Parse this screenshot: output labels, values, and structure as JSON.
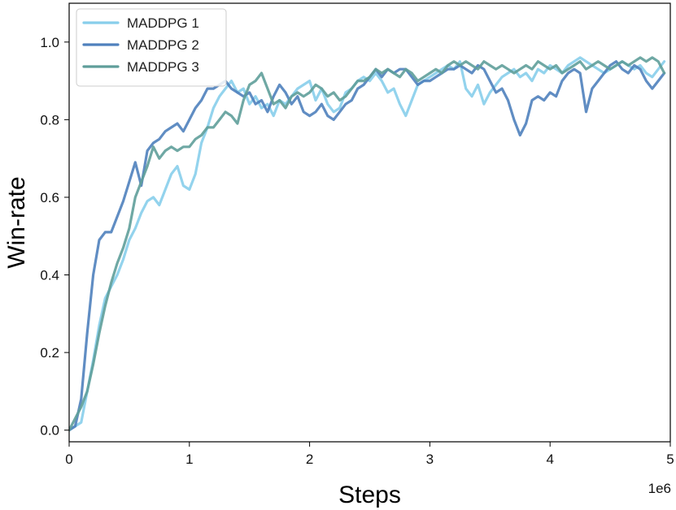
{
  "chart_data": {
    "type": "line",
    "title": "",
    "xlabel": "Steps",
    "ylabel": "Win-rate",
    "x_offset_label": "1e6",
    "xlim": [
      0,
      5
    ],
    "ylim": [
      -0.03,
      1.1
    ],
    "xticks": [
      0,
      1,
      2,
      3,
      4,
      5
    ],
    "xtick_labels": [
      "0",
      "1",
      "2",
      "3",
      "4",
      "5"
    ],
    "yticks": [
      0.0,
      0.2,
      0.4,
      0.6,
      0.8,
      1.0
    ],
    "ytick_labels": [
      "0.0",
      "0.2",
      "0.4",
      "0.6",
      "0.8",
      "1.0"
    ],
    "grid": false,
    "legend_position": "top-left",
    "series": [
      {
        "name": "MADDPG 1",
        "color": "#87CEEB",
        "points": [
          [
            0,
            0
          ],
          [
            0.1,
            0.02
          ],
          [
            0.15,
            0.1
          ],
          [
            0.2,
            0.18
          ],
          [
            0.25,
            0.27
          ],
          [
            0.3,
            0.34
          ],
          [
            0.35,
            0.37
          ],
          [
            0.4,
            0.4
          ],
          [
            0.45,
            0.44
          ],
          [
            0.5,
            0.49
          ],
          [
            0.55,
            0.52
          ],
          [
            0.6,
            0.56
          ],
          [
            0.65,
            0.59
          ],
          [
            0.7,
            0.6
          ],
          [
            0.75,
            0.58
          ],
          [
            0.8,
            0.62
          ],
          [
            0.85,
            0.66
          ],
          [
            0.9,
            0.68
          ],
          [
            0.95,
            0.63
          ],
          [
            1.0,
            0.62
          ],
          [
            1.05,
            0.66
          ],
          [
            1.1,
            0.74
          ],
          [
            1.15,
            0.78
          ],
          [
            1.2,
            0.83
          ],
          [
            1.25,
            0.86
          ],
          [
            1.3,
            0.88
          ],
          [
            1.35,
            0.9
          ],
          [
            1.4,
            0.87
          ],
          [
            1.45,
            0.88
          ],
          [
            1.5,
            0.84
          ],
          [
            1.55,
            0.86
          ],
          [
            1.6,
            0.83
          ],
          [
            1.65,
            0.84
          ],
          [
            1.7,
            0.81
          ],
          [
            1.75,
            0.85
          ],
          [
            1.8,
            0.84
          ],
          [
            1.85,
            0.86
          ],
          [
            1.9,
            0.88
          ],
          [
            1.95,
            0.89
          ],
          [
            2.0,
            0.9
          ],
          [
            2.05,
            0.85
          ],
          [
            2.1,
            0.88
          ],
          [
            2.15,
            0.84
          ],
          [
            2.2,
            0.82
          ],
          [
            2.25,
            0.83
          ],
          [
            2.3,
            0.87
          ],
          [
            2.35,
            0.88
          ],
          [
            2.4,
            0.9
          ],
          [
            2.45,
            0.91
          ],
          [
            2.5,
            0.9
          ],
          [
            2.55,
            0.92
          ],
          [
            2.6,
            0.9
          ],
          [
            2.65,
            0.87
          ],
          [
            2.7,
            0.88
          ],
          [
            2.75,
            0.84
          ],
          [
            2.8,
            0.81
          ],
          [
            2.85,
            0.85
          ],
          [
            2.9,
            0.89
          ],
          [
            2.95,
            0.9
          ],
          [
            3.0,
            0.91
          ],
          [
            3.05,
            0.92
          ],
          [
            3.1,
            0.93
          ],
          [
            3.15,
            0.94
          ],
          [
            3.2,
            0.93
          ],
          [
            3.25,
            0.95
          ],
          [
            3.3,
            0.88
          ],
          [
            3.35,
            0.86
          ],
          [
            3.4,
            0.89
          ],
          [
            3.45,
            0.84
          ],
          [
            3.5,
            0.87
          ],
          [
            3.55,
            0.89
          ],
          [
            3.6,
            0.91
          ],
          [
            3.65,
            0.92
          ],
          [
            3.7,
            0.93
          ],
          [
            3.75,
            0.91
          ],
          [
            3.8,
            0.92
          ],
          [
            3.85,
            0.9
          ],
          [
            3.9,
            0.93
          ],
          [
            3.95,
            0.92
          ],
          [
            4.0,
            0.94
          ],
          [
            4.05,
            0.93
          ],
          [
            4.1,
            0.92
          ],
          [
            4.15,
            0.94
          ],
          [
            4.2,
            0.95
          ],
          [
            4.25,
            0.96
          ],
          [
            4.3,
            0.95
          ],
          [
            4.35,
            0.94
          ],
          [
            4.4,
            0.93
          ],
          [
            4.45,
            0.92
          ],
          [
            4.5,
            0.93
          ],
          [
            4.55,
            0.94
          ],
          [
            4.6,
            0.95
          ],
          [
            4.65,
            0.94
          ],
          [
            4.7,
            0.93
          ],
          [
            4.75,
            0.94
          ],
          [
            4.8,
            0.92
          ],
          [
            4.85,
            0.91
          ],
          [
            4.9,
            0.93
          ],
          [
            4.95,
            0.95
          ]
        ]
      },
      {
        "name": "MADDPG 2",
        "color": "#4F81BD",
        "points": [
          [
            0,
            0
          ],
          [
            0.05,
            0.01
          ],
          [
            0.1,
            0.08
          ],
          [
            0.15,
            0.25
          ],
          [
            0.2,
            0.4
          ],
          [
            0.25,
            0.49
          ],
          [
            0.3,
            0.51
          ],
          [
            0.35,
            0.51
          ],
          [
            0.4,
            0.55
          ],
          [
            0.45,
            0.59
          ],
          [
            0.5,
            0.64
          ],
          [
            0.55,
            0.69
          ],
          [
            0.6,
            0.63
          ],
          [
            0.65,
            0.72
          ],
          [
            0.7,
            0.74
          ],
          [
            0.75,
            0.75
          ],
          [
            0.8,
            0.77
          ],
          [
            0.85,
            0.78
          ],
          [
            0.9,
            0.79
          ],
          [
            0.95,
            0.77
          ],
          [
            1.0,
            0.8
          ],
          [
            1.05,
            0.83
          ],
          [
            1.1,
            0.85
          ],
          [
            1.15,
            0.88
          ],
          [
            1.2,
            0.88
          ],
          [
            1.25,
            0.89
          ],
          [
            1.3,
            0.9
          ],
          [
            1.35,
            0.88
          ],
          [
            1.4,
            0.87
          ],
          [
            1.45,
            0.86
          ],
          [
            1.5,
            0.87
          ],
          [
            1.55,
            0.84
          ],
          [
            1.6,
            0.85
          ],
          [
            1.65,
            0.82
          ],
          [
            1.7,
            0.86
          ],
          [
            1.75,
            0.89
          ],
          [
            1.8,
            0.87
          ],
          [
            1.85,
            0.84
          ],
          [
            1.9,
            0.86
          ],
          [
            1.95,
            0.82
          ],
          [
            2.0,
            0.81
          ],
          [
            2.05,
            0.82
          ],
          [
            2.1,
            0.84
          ],
          [
            2.15,
            0.81
          ],
          [
            2.2,
            0.8
          ],
          [
            2.25,
            0.82
          ],
          [
            2.3,
            0.84
          ],
          [
            2.35,
            0.85
          ],
          [
            2.4,
            0.88
          ],
          [
            2.45,
            0.89
          ],
          [
            2.5,
            0.91
          ],
          [
            2.55,
            0.93
          ],
          [
            2.6,
            0.91
          ],
          [
            2.65,
            0.93
          ],
          [
            2.7,
            0.92
          ],
          [
            2.75,
            0.93
          ],
          [
            2.8,
            0.93
          ],
          [
            2.85,
            0.91
          ],
          [
            2.9,
            0.89
          ],
          [
            2.95,
            0.9
          ],
          [
            3.0,
            0.9
          ],
          [
            3.05,
            0.91
          ],
          [
            3.1,
            0.92
          ],
          [
            3.15,
            0.93
          ],
          [
            3.2,
            0.93
          ],
          [
            3.25,
            0.94
          ],
          [
            3.3,
            0.93
          ],
          [
            3.35,
            0.92
          ],
          [
            3.4,
            0.94
          ],
          [
            3.45,
            0.93
          ],
          [
            3.5,
            0.9
          ],
          [
            3.55,
            0.87
          ],
          [
            3.6,
            0.88
          ],
          [
            3.65,
            0.85
          ],
          [
            3.7,
            0.8
          ],
          [
            3.75,
            0.76
          ],
          [
            3.8,
            0.79
          ],
          [
            3.85,
            0.85
          ],
          [
            3.9,
            0.86
          ],
          [
            3.95,
            0.85
          ],
          [
            4.0,
            0.87
          ],
          [
            4.05,
            0.86
          ],
          [
            4.1,
            0.9
          ],
          [
            4.15,
            0.92
          ],
          [
            4.2,
            0.93
          ],
          [
            4.25,
            0.92
          ],
          [
            4.3,
            0.82
          ],
          [
            4.35,
            0.88
          ],
          [
            4.4,
            0.9
          ],
          [
            4.45,
            0.92
          ],
          [
            4.5,
            0.94
          ],
          [
            4.55,
            0.95
          ],
          [
            4.6,
            0.93
          ],
          [
            4.65,
            0.92
          ],
          [
            4.7,
            0.94
          ],
          [
            4.75,
            0.93
          ],
          [
            4.8,
            0.9
          ],
          [
            4.85,
            0.88
          ],
          [
            4.9,
            0.9
          ],
          [
            4.95,
            0.92
          ]
        ]
      },
      {
        "name": "MADDPG 3",
        "color": "#5F9E9A",
        "points": [
          [
            0,
            0
          ],
          [
            0.1,
            0.06
          ],
          [
            0.15,
            0.1
          ],
          [
            0.2,
            0.17
          ],
          [
            0.25,
            0.25
          ],
          [
            0.3,
            0.32
          ],
          [
            0.35,
            0.38
          ],
          [
            0.4,
            0.43
          ],
          [
            0.45,
            0.47
          ],
          [
            0.5,
            0.52
          ],
          [
            0.55,
            0.6
          ],
          [
            0.6,
            0.64
          ],
          [
            0.65,
            0.68
          ],
          [
            0.7,
            0.73
          ],
          [
            0.75,
            0.7
          ],
          [
            0.8,
            0.72
          ],
          [
            0.85,
            0.73
          ],
          [
            0.9,
            0.72
          ],
          [
            0.95,
            0.73
          ],
          [
            1.0,
            0.73
          ],
          [
            1.05,
            0.75
          ],
          [
            1.1,
            0.76
          ],
          [
            1.15,
            0.78
          ],
          [
            1.2,
            0.78
          ],
          [
            1.25,
            0.8
          ],
          [
            1.3,
            0.82
          ],
          [
            1.35,
            0.81
          ],
          [
            1.4,
            0.79
          ],
          [
            1.45,
            0.85
          ],
          [
            1.5,
            0.89
          ],
          [
            1.55,
            0.9
          ],
          [
            1.6,
            0.92
          ],
          [
            1.65,
            0.88
          ],
          [
            1.7,
            0.84
          ],
          [
            1.75,
            0.85
          ],
          [
            1.8,
            0.83
          ],
          [
            1.85,
            0.86
          ],
          [
            1.9,
            0.87
          ],
          [
            1.95,
            0.86
          ],
          [
            2.0,
            0.87
          ],
          [
            2.05,
            0.89
          ],
          [
            2.1,
            0.88
          ],
          [
            2.15,
            0.86
          ],
          [
            2.2,
            0.87
          ],
          [
            2.25,
            0.85
          ],
          [
            2.3,
            0.86
          ],
          [
            2.35,
            0.88
          ],
          [
            2.4,
            0.9
          ],
          [
            2.45,
            0.9
          ],
          [
            2.5,
            0.91
          ],
          [
            2.55,
            0.93
          ],
          [
            2.6,
            0.92
          ],
          [
            2.65,
            0.93
          ],
          [
            2.7,
            0.92
          ],
          [
            2.75,
            0.91
          ],
          [
            2.8,
            0.93
          ],
          [
            2.85,
            0.92
          ],
          [
            2.9,
            0.9
          ],
          [
            2.95,
            0.91
          ],
          [
            3.0,
            0.92
          ],
          [
            3.05,
            0.93
          ],
          [
            3.1,
            0.92
          ],
          [
            3.15,
            0.94
          ],
          [
            3.2,
            0.95
          ],
          [
            3.25,
            0.94
          ],
          [
            3.3,
            0.95
          ],
          [
            3.35,
            0.94
          ],
          [
            3.4,
            0.93
          ],
          [
            3.45,
            0.95
          ],
          [
            3.5,
            0.94
          ],
          [
            3.55,
            0.93
          ],
          [
            3.6,
            0.94
          ],
          [
            3.65,
            0.93
          ],
          [
            3.7,
            0.92
          ],
          [
            3.75,
            0.93
          ],
          [
            3.8,
            0.94
          ],
          [
            3.85,
            0.93
          ],
          [
            3.9,
            0.95
          ],
          [
            3.95,
            0.94
          ],
          [
            4.0,
            0.93
          ],
          [
            4.05,
            0.94
          ],
          [
            4.1,
            0.92
          ],
          [
            4.15,
            0.93
          ],
          [
            4.2,
            0.94
          ],
          [
            4.25,
            0.95
          ],
          [
            4.3,
            0.93
          ],
          [
            4.35,
            0.94
          ],
          [
            4.4,
            0.95
          ],
          [
            4.45,
            0.94
          ],
          [
            4.5,
            0.93
          ],
          [
            4.55,
            0.94
          ],
          [
            4.6,
            0.95
          ],
          [
            4.65,
            0.94
          ],
          [
            4.7,
            0.95
          ],
          [
            4.75,
            0.96
          ],
          [
            4.8,
            0.95
          ],
          [
            4.85,
            0.96
          ],
          [
            4.9,
            0.95
          ],
          [
            4.95,
            0.92
          ]
        ]
      }
    ]
  }
}
